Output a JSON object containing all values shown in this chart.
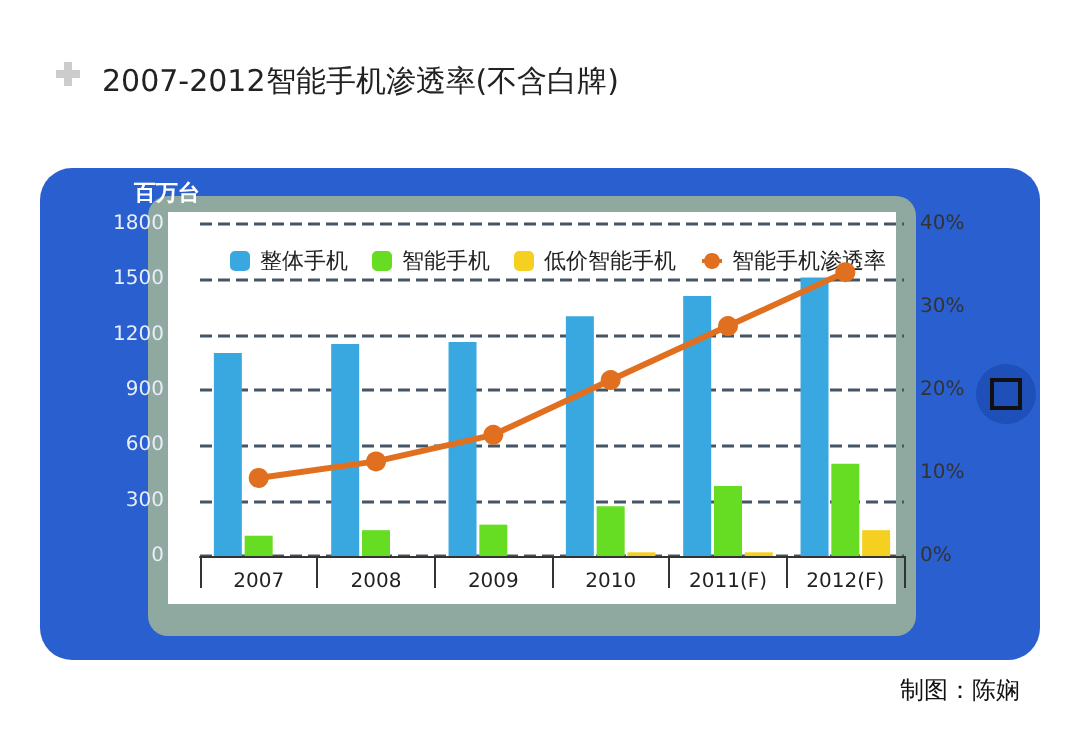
{
  "chart_data": {
    "type": "bar",
    "title": "2007-2012智能手机渗透率(不含白牌)",
    "ylabel": "百万台",
    "categories": [
      "2007",
      "2008",
      "2009",
      "2010",
      "2011(F)",
      "2012(F)"
    ],
    "series": [
      {
        "name": "整体手机",
        "color": "#3aa8e0",
        "values": [
          1100,
          1150,
          1160,
          1300,
          1410,
          1510
        ]
      },
      {
        "name": "智能手机",
        "color": "#66dd22",
        "values": [
          110,
          140,
          170,
          270,
          380,
          500
        ]
      },
      {
        "name": "低价智能手机",
        "color": "#f5d020",
        "values": [
          null,
          null,
          null,
          20,
          20,
          140
        ]
      },
      {
        "name": "智能手机渗透率",
        "type": "line",
        "axis": "y2",
        "color": "#e07020",
        "values": [
          9.4,
          11.4,
          14.6,
          21.2,
          27.7,
          34.2
        ]
      }
    ],
    "ylim": [
      0,
      1800
    ],
    "yticks": [
      0,
      300,
      600,
      900,
      1200,
      1500,
      1800
    ],
    "y2lim": [
      0,
      40
    ],
    "y2ticks": [
      {
        "value": 0,
        "label": "0%"
      },
      {
        "value": 10,
        "label": "10%"
      },
      {
        "value": 20,
        "label": "20%"
      },
      {
        "value": 30,
        "label": "30%"
      },
      {
        "value": 40,
        "label": "40%"
      }
    ],
    "grid": "y",
    "legend": "top",
    "marker": "circle",
    "line_style": "solid",
    "annotations": [
      "制图：陈娴"
    ]
  }
}
